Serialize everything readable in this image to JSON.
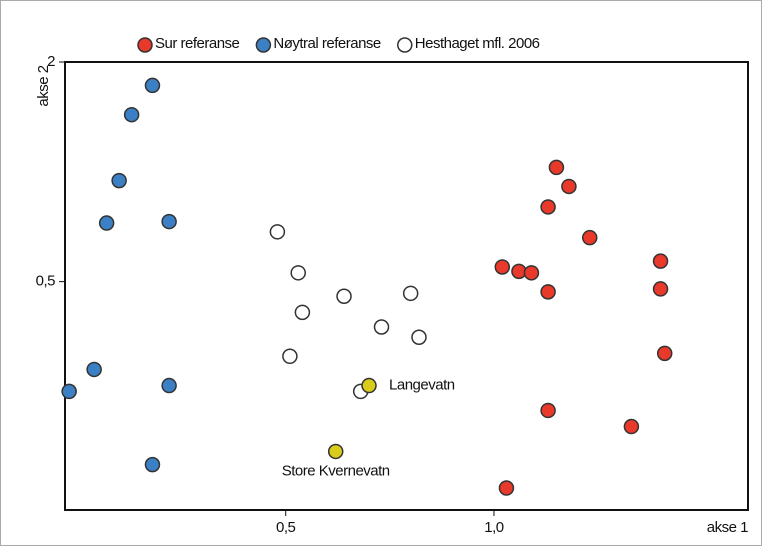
{
  "chart_data": {
    "type": "scatter",
    "xlabel": "akse 1",
    "ylabel": "akse 2",
    "xlim": [
      -0.03,
      1.61
    ],
    "ylim": [
      -1.06,
      2
    ],
    "xticks": [
      {
        "value": 0.5,
        "label": "0,5"
      },
      {
        "value": 1.0,
        "label": "1,0"
      }
    ],
    "yticks": [
      {
        "value": 0.5,
        "label": "0,5"
      },
      {
        "value": 2,
        "label": "2"
      }
    ],
    "legend": "top",
    "series": [
      {
        "name": "Sur referanse",
        "color": "#e8392b",
        "x": [
          1.15,
          1.18,
          1.13,
          1.23,
          1.02,
          1.06,
          1.09,
          1.13,
          1.4,
          1.4,
          1.41,
          1.13,
          1.33,
          1.03
        ],
        "values": [
          1.28,
          1.15,
          1.01,
          0.8,
          0.6,
          0.57,
          0.56,
          0.43,
          0.64,
          0.45,
          0.01,
          -0.38,
          -0.49,
          -0.91
        ]
      },
      {
        "name": "Nøytral referanse",
        "color": "#3b7fc4",
        "x": [
          0.18,
          0.13,
          0.1,
          0.07,
          0.22,
          0.04,
          -0.02,
          0.22,
          0.18
        ],
        "values": [
          1.84,
          1.64,
          1.19,
          0.9,
          0.91,
          -0.1,
          -0.25,
          -0.21,
          -0.75
        ]
      },
      {
        "name": "Hesthaget mfl. 2006",
        "color": "#ffffff",
        "x": [
          0.48,
          0.53,
          0.54,
          0.64,
          0.8,
          0.73,
          0.82,
          0.51,
          0.68
        ],
        "values": [
          0.84,
          0.56,
          0.29,
          0.4,
          0.42,
          0.19,
          0.12,
          -0.01,
          -0.25
        ]
      }
    ],
    "annotations": [
      {
        "text": "Langevatn",
        "color": "#d9cc1a",
        "x": 0.7,
        "y": -0.21
      },
      {
        "text": "Store Kvernevatn",
        "color": "#d9cc1a",
        "x": 0.62,
        "y": -0.66
      }
    ]
  }
}
